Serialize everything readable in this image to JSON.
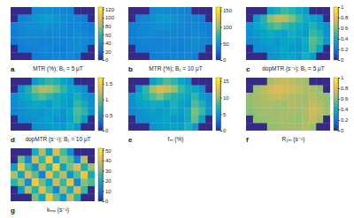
{
  "chart_data": [
    {
      "type": "heatmap",
      "panel_label": "a",
      "title": "MTR (%); B₁ = 5 μT",
      "tick_labels": false,
      "color_range": [
        0,
        125
      ],
      "color_ticks": [
        0,
        20,
        40,
        60,
        80,
        100,
        120
      ],
      "cells": [
        [
          0,
          0,
          0,
          32,
          34,
          35,
          33,
          31,
          30,
          0,
          0,
          0
        ],
        [
          0,
          30,
          33,
          38,
          42,
          44,
          40,
          36,
          33,
          31,
          29,
          0
        ],
        [
          29,
          32,
          35,
          36,
          38,
          37,
          35,
          34,
          32,
          33,
          30,
          28
        ],
        [
          28,
          31,
          33,
          34,
          33,
          32,
          33,
          32,
          31,
          34,
          33,
          29
        ],
        [
          27,
          30,
          32,
          31,
          30,
          31,
          32,
          30,
          33,
          36,
          34,
          30
        ],
        [
          0,
          28,
          29,
          30,
          31,
          32,
          30,
          29,
          32,
          35,
          31,
          0
        ],
        [
          0,
          0,
          0,
          28,
          29,
          30,
          31,
          30,
          33,
          29,
          0,
          0
        ]
      ]
    },
    {
      "type": "heatmap",
      "panel_label": "b",
      "title": "MTR (%); B₁ = 10 μT",
      "tick_labels": false,
      "color_range": [
        0,
        160
      ],
      "color_ticks": [
        0,
        50,
        100,
        150
      ],
      "cells": [
        [
          0,
          0,
          0,
          40,
          42,
          43,
          41,
          39,
          38,
          0,
          0,
          0
        ],
        [
          0,
          38,
          41,
          47,
          52,
          54,
          50,
          45,
          41,
          39,
          37,
          0
        ],
        [
          37,
          40,
          43,
          45,
          47,
          46,
          44,
          42,
          40,
          41,
          38,
          36
        ],
        [
          36,
          39,
          41,
          42,
          41,
          40,
          41,
          40,
          39,
          42,
          41,
          37
        ],
        [
          35,
          38,
          40,
          39,
          38,
          39,
          40,
          38,
          41,
          45,
          42,
          38
        ],
        [
          0,
          36,
          37,
          38,
          39,
          40,
          38,
          37,
          40,
          44,
          39,
          0
        ],
        [
          0,
          0,
          0,
          36,
          37,
          38,
          39,
          38,
          41,
          37,
          0,
          0
        ]
      ]
    },
    {
      "type": "heatmap",
      "panel_label": "c",
      "title": "dopMTR (s⁻¹); B₁ = 5 μT",
      "tick_labels": false,
      "color_range": [
        0,
        1
      ],
      "color_ticks": [
        0,
        0.2,
        0.4,
        0.6,
        0.8,
        1
      ],
      "cells": [
        [
          0,
          0,
          0,
          0.35,
          0.42,
          0.5,
          0.45,
          0.38,
          0.33,
          0,
          0,
          0
        ],
        [
          0,
          0.32,
          0.45,
          0.62,
          0.7,
          0.68,
          0.6,
          0.5,
          0.4,
          0.36,
          0.3,
          0
        ],
        [
          0.3,
          0.38,
          0.42,
          0.5,
          0.55,
          0.48,
          0.44,
          0.4,
          0.36,
          0.45,
          0.35,
          0.28
        ],
        [
          0.28,
          0.34,
          0.36,
          0.4,
          0.38,
          0.35,
          0.42,
          0.37,
          0.34,
          0.5,
          0.44,
          0.3
        ],
        [
          0.26,
          0.3,
          0.33,
          0.35,
          0.32,
          0.36,
          0.38,
          0.33,
          0.4,
          0.55,
          0.48,
          0.32
        ],
        [
          0,
          0.28,
          0.3,
          0.32,
          0.34,
          0.37,
          0.33,
          0.31,
          0.38,
          0.52,
          0.36,
          0
        ],
        [
          0,
          0,
          0,
          0.3,
          0.32,
          0.35,
          0.36,
          0.34,
          0.42,
          0.33,
          0,
          0
        ]
      ]
    },
    {
      "type": "heatmap",
      "panel_label": "d",
      "title": "dopMTR (s⁻¹); B₁ = 10 μT",
      "tick_labels": false,
      "color_range": [
        0,
        1.7
      ],
      "color_ticks": [
        0,
        0.5,
        1,
        1.5
      ],
      "cells": [
        [
          0,
          0,
          0,
          0.55,
          0.7,
          0.82,
          0.74,
          0.62,
          0.52,
          0,
          0,
          0
        ],
        [
          0,
          0.5,
          0.72,
          1.0,
          1.15,
          1.1,
          0.98,
          0.8,
          0.64,
          0.58,
          0.48,
          0
        ],
        [
          0.48,
          0.6,
          0.68,
          0.82,
          0.9,
          0.78,
          0.7,
          0.64,
          0.58,
          0.72,
          0.56,
          0.45
        ],
        [
          0.45,
          0.55,
          0.58,
          0.65,
          0.62,
          0.56,
          0.68,
          0.6,
          0.55,
          0.82,
          0.7,
          0.48
        ],
        [
          0.42,
          0.48,
          0.53,
          0.56,
          0.52,
          0.58,
          0.62,
          0.53,
          0.65,
          0.9,
          0.78,
          0.5
        ],
        [
          0,
          0.45,
          0.48,
          0.52,
          0.55,
          0.6,
          0.53,
          0.5,
          0.62,
          0.85,
          0.58,
          0
        ],
        [
          0,
          0,
          0,
          0.48,
          0.52,
          0.56,
          0.58,
          0.55,
          0.68,
          0.53,
          0,
          0
        ]
      ]
    },
    {
      "type": "heatmap",
      "panel_label": "e",
      "title": "fₘ (%)",
      "tick_labels": false,
      "color_range": [
        0,
        16
      ],
      "color_ticks": [
        0,
        5,
        10,
        15
      ],
      "cells": [
        [
          0,
          0,
          0,
          5.5,
          7,
          8.5,
          7.5,
          6,
          5,
          0,
          0,
          0
        ],
        [
          0,
          5,
          7.5,
          10.5,
          12,
          11.5,
          10,
          8,
          6.5,
          6,
          4.8,
          0
        ],
        [
          4.8,
          6,
          7,
          8.5,
          9.5,
          8,
          7,
          6.5,
          6,
          7.5,
          5.5,
          4.5
        ],
        [
          4.5,
          5.5,
          6,
          6.5,
          6.2,
          5.6,
          7,
          6,
          5.5,
          8.5,
          7,
          4.8
        ],
        [
          4.2,
          4.8,
          5.3,
          5.6,
          5.2,
          5.8,
          6.3,
          5.3,
          6.5,
          9.5,
          8,
          5
        ],
        [
          0,
          4.5,
          4.8,
          5.2,
          5.5,
          6,
          5.3,
          5,
          6.2,
          9,
          5.8,
          0
        ],
        [
          0,
          0,
          0,
          4.8,
          5.2,
          5.6,
          5.8,
          5.5,
          7,
          5.3,
          0,
          0
        ]
      ]
    },
    {
      "type": "heatmap",
      "panel_label": "f",
      "title": "R₁ₘ (s⁻¹)",
      "tick_labels": false,
      "color_range": [
        0,
        1
      ],
      "color_ticks": [
        0,
        0.2,
        0.4,
        0.6,
        0.8,
        1
      ],
      "cells": [
        [
          0,
          0,
          0,
          0.66,
          0.7,
          0.72,
          0.7,
          0.67,
          0.65,
          0,
          0,
          0
        ],
        [
          0,
          0.64,
          0.69,
          0.74,
          0.76,
          0.75,
          0.73,
          0.7,
          0.67,
          0.66,
          0.63,
          0
        ],
        [
          0.63,
          0.66,
          0.68,
          0.7,
          0.72,
          0.7,
          0.68,
          0.67,
          0.66,
          0.69,
          0.65,
          0.62
        ],
        [
          0.62,
          0.65,
          0.66,
          0.67,
          0.66,
          0.65,
          0.68,
          0.66,
          0.65,
          0.71,
          0.68,
          0.63
        ],
        [
          0.61,
          0.63,
          0.65,
          0.66,
          0.64,
          0.66,
          0.67,
          0.65,
          0.68,
          0.73,
          0.7,
          0.64
        ],
        [
          0,
          0.62,
          0.63,
          0.64,
          0.65,
          0.66,
          0.64,
          0.63,
          0.67,
          0.72,
          0.66,
          0
        ],
        [
          0,
          0,
          0,
          0.63,
          0.64,
          0.65,
          0.66,
          0.65,
          0.69,
          0.64,
          0,
          0
        ]
      ]
    },
    {
      "type": "heatmap",
      "panel_label": "g",
      "title": "kₘₚ (s⁻¹)",
      "tick_labels": false,
      "color_range": [
        0,
        52
      ],
      "color_ticks": [
        0,
        10,
        20,
        30,
        40,
        50
      ],
      "cells": [
        [
          0,
          0,
          0,
          22,
          35,
          18,
          40,
          27,
          15,
          0,
          0,
          0
        ],
        [
          0,
          30,
          14,
          38,
          25,
          44,
          20,
          33,
          28,
          12,
          36,
          0
        ],
        [
          18,
          42,
          27,
          16,
          36,
          23,
          45,
          19,
          31,
          40,
          22,
          34
        ],
        [
          35,
          20,
          39,
          29,
          12,
          41,
          26,
          37,
          17,
          28,
          43,
          21
        ],
        [
          24,
          33,
          15,
          44,
          30,
          19,
          38,
          25,
          42,
          14,
          32,
          27
        ],
        [
          0,
          17,
          36,
          23,
          40,
          28,
          13,
          34,
          22,
          39,
          26,
          0
        ],
        [
          0,
          0,
          0,
          31,
          20,
          43,
          29,
          16,
          37,
          24,
          0,
          0
        ]
      ]
    }
  ]
}
